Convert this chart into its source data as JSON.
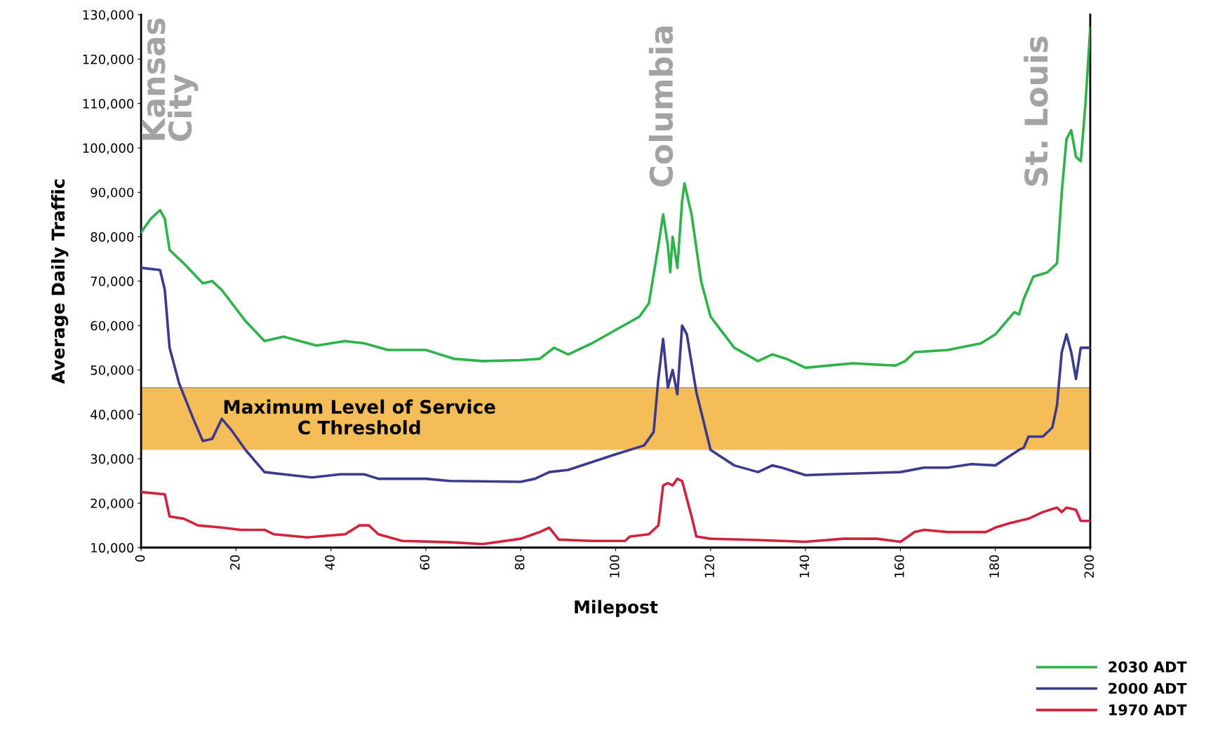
{
  "chart_data": {
    "type": "line",
    "xlabel": "Milepost",
    "ylabel": "Average Daily Traffic",
    "xlim": [
      0,
      200
    ],
    "xticks": [
      0,
      20,
      40,
      60,
      80,
      100,
      120,
      140,
      160,
      180,
      200
    ],
    "ylim": [
      10000,
      130000
    ],
    "yticks": [
      {
        "value": 10000,
        "label": "10,000"
      },
      {
        "value": 20000,
        "label": "20,000"
      },
      {
        "value": 30000,
        "label": "30,000"
      },
      {
        "value": 40000,
        "label": "40,000"
      },
      {
        "value": 50000,
        "label": "50,000"
      },
      {
        "value": 60000,
        "label": "60,000"
      },
      {
        "value": 70000,
        "label": "70,000"
      },
      {
        "value": 80000,
        "label": "80,000"
      },
      {
        "value": 90000,
        "label": "90,000"
      },
      {
        "value": 100000,
        "label": "100,000"
      },
      {
        "value": 110000,
        "label": "110,000"
      },
      {
        "value": 120000,
        "label": "120,000"
      },
      {
        "value": 130000,
        "label": "130,000"
      }
    ],
    "grid": false,
    "legend": "bottom right",
    "line_style": "solid",
    "marker": "none",
    "series": [
      {
        "name": "2030 ADT",
        "color": "#2db34a",
        "x": [
          0,
          2,
          4,
          5,
          6,
          9,
          13,
          15,
          17,
          22,
          26,
          30,
          37,
          43,
          47,
          52,
          60,
          66,
          72,
          80,
          84,
          87,
          90,
          95,
          100,
          105,
          107,
          109,
          110,
          111,
          111.5,
          112,
          113,
          114,
          114.5,
          116,
          118,
          120,
          125,
          130,
          133,
          136,
          140,
          145,
          150,
          155,
          159,
          161,
          163,
          170,
          177,
          180,
          184,
          185,
          186,
          188,
          191,
          193,
          194,
          195,
          196,
          197,
          198,
          199,
          200
        ],
        "values": [
          81000,
          84000,
          86000,
          84000,
          77000,
          74000,
          69500,
          70000,
          68000,
          61000,
          56500,
          57500,
          55500,
          56500,
          56000,
          54500,
          54500,
          52500,
          52000,
          52200,
          52500,
          55000,
          53500,
          56000,
          59000,
          62000,
          65000,
          78000,
          85000,
          78000,
          72000,
          80000,
          73000,
          88000,
          92000,
          85000,
          70000,
          62000,
          55000,
          52000,
          53500,
          52500,
          50500,
          51000,
          51500,
          51200,
          51000,
          52000,
          54000,
          54500,
          56000,
          58000,
          63000,
          62500,
          66000,
          71000,
          72000,
          74000,
          90000,
          102000,
          104000,
          98000,
          97000,
          110000,
          127000
        ]
      },
      {
        "name": "2000 ADT",
        "color": "#3c3a8f",
        "x": [
          0,
          4,
          5,
          6,
          8,
          11,
          13,
          15,
          17,
          19,
          22,
          26,
          30,
          36,
          42,
          47,
          50,
          60,
          65,
          80,
          83,
          86,
          90,
          100,
          106,
          108,
          109,
          110,
          111,
          112,
          113,
          114,
          115,
          117,
          120,
          125,
          130,
          133,
          135,
          140,
          145,
          160,
          165,
          170,
          175,
          180,
          185,
          186,
          187,
          190,
          192,
          193,
          194,
          195,
          196,
          197,
          198,
          200
        ],
        "values": [
          73000,
          72500,
          68000,
          55000,
          47000,
          39000,
          34000,
          34500,
          39000,
          36500,
          32000,
          27000,
          26500,
          25800,
          26500,
          26500,
          25500,
          25500,
          25000,
          24800,
          25500,
          27000,
          27500,
          31000,
          33000,
          36000,
          48000,
          57000,
          46000,
          50000,
          44500,
          60000,
          58000,
          45000,
          32000,
          28500,
          27000,
          28500,
          28000,
          26300,
          26500,
          27000,
          28000,
          28000,
          28800,
          28500,
          32000,
          32500,
          35000,
          35000,
          37000,
          42000,
          54000,
          58000,
          54000,
          48000,
          55000,
          55000
        ]
      },
      {
        "name": "1970 ADT",
        "color": "#d2233c",
        "x": [
          0,
          5,
          6,
          9,
          12,
          17,
          21,
          26,
          28,
          35,
          43,
          46,
          48,
          50,
          55,
          65,
          72,
          80,
          84,
          86,
          88,
          95,
          102,
          103,
          107,
          109,
          110,
          111,
          112,
          113,
          114,
          116,
          117,
          120,
          130,
          140,
          148,
          155,
          160,
          163,
          165,
          170,
          178,
          180,
          183,
          187,
          190,
          193,
          194,
          195,
          197,
          198,
          200
        ],
        "values": [
          22500,
          22000,
          17000,
          16500,
          15000,
          14500,
          14000,
          14000,
          13000,
          12300,
          13000,
          15000,
          15000,
          13000,
          11500,
          11200,
          10800,
          12000,
          13500,
          14500,
          11800,
          11500,
          11500,
          12500,
          13000,
          15000,
          24000,
          24500,
          24000,
          25500,
          25000,
          17000,
          12500,
          12000,
          11700,
          11300,
          12000,
          12000,
          11300,
          13500,
          14000,
          13500,
          13500,
          14500,
          15500,
          16500,
          18000,
          19000,
          18000,
          19000,
          18500,
          16000,
          16000
        ]
      }
    ],
    "bands": [
      {
        "axis": "y",
        "from": 32000,
        "to": 46000,
        "label": "Maximum Level of Service\nC Threshold",
        "color": "#f3b13a"
      }
    ],
    "ref_lines": [
      {
        "axis": "y",
        "value": 46000,
        "color": "#888888"
      }
    ],
    "annotations": [
      "Kansas\nCity",
      "Columbia",
      "St. Louis"
    ]
  }
}
